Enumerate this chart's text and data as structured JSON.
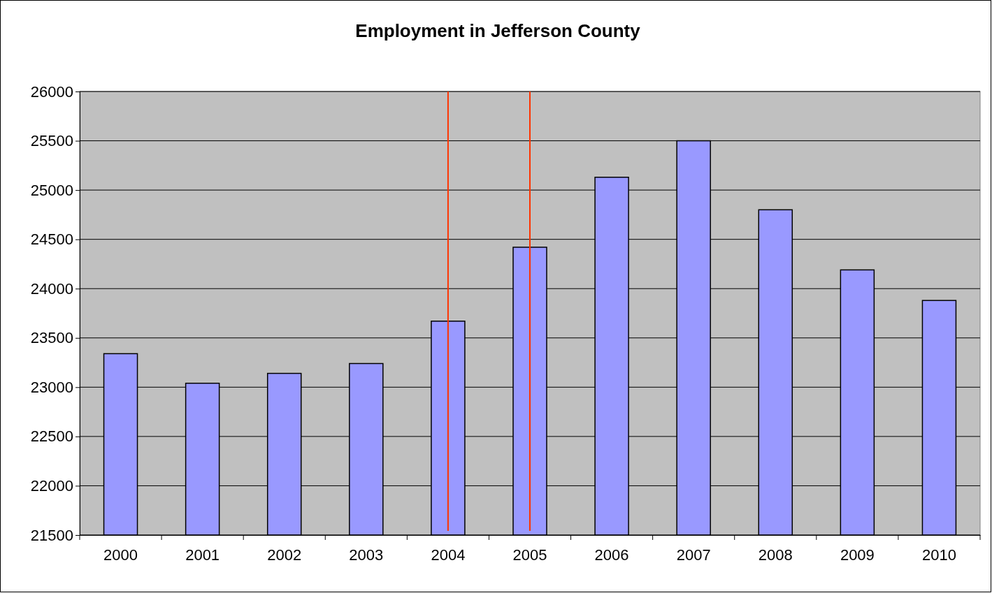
{
  "chart_data": {
    "type": "bar",
    "title": "Employment in Jefferson County",
    "categories": [
      "2000",
      "2001",
      "2002",
      "2003",
      "2004",
      "2005",
      "2006",
      "2007",
      "2008",
      "2009",
      "2010"
    ],
    "values": [
      23340,
      23040,
      23140,
      23240,
      23670,
      24420,
      25130,
      25500,
      24800,
      24190,
      23880
    ],
    "color": "#9999ff",
    "ylim": [
      21500,
      26000
    ],
    "yticks": [
      21500,
      22000,
      22500,
      23000,
      23500,
      24000,
      24500,
      25000,
      25500,
      26000
    ],
    "grid": "y",
    "ref_lines": [
      {
        "axis": "x",
        "value": "2004",
        "color": "#ff3300"
      },
      {
        "axis": "x",
        "value": "2005",
        "color": "#ff3300"
      }
    ]
  }
}
